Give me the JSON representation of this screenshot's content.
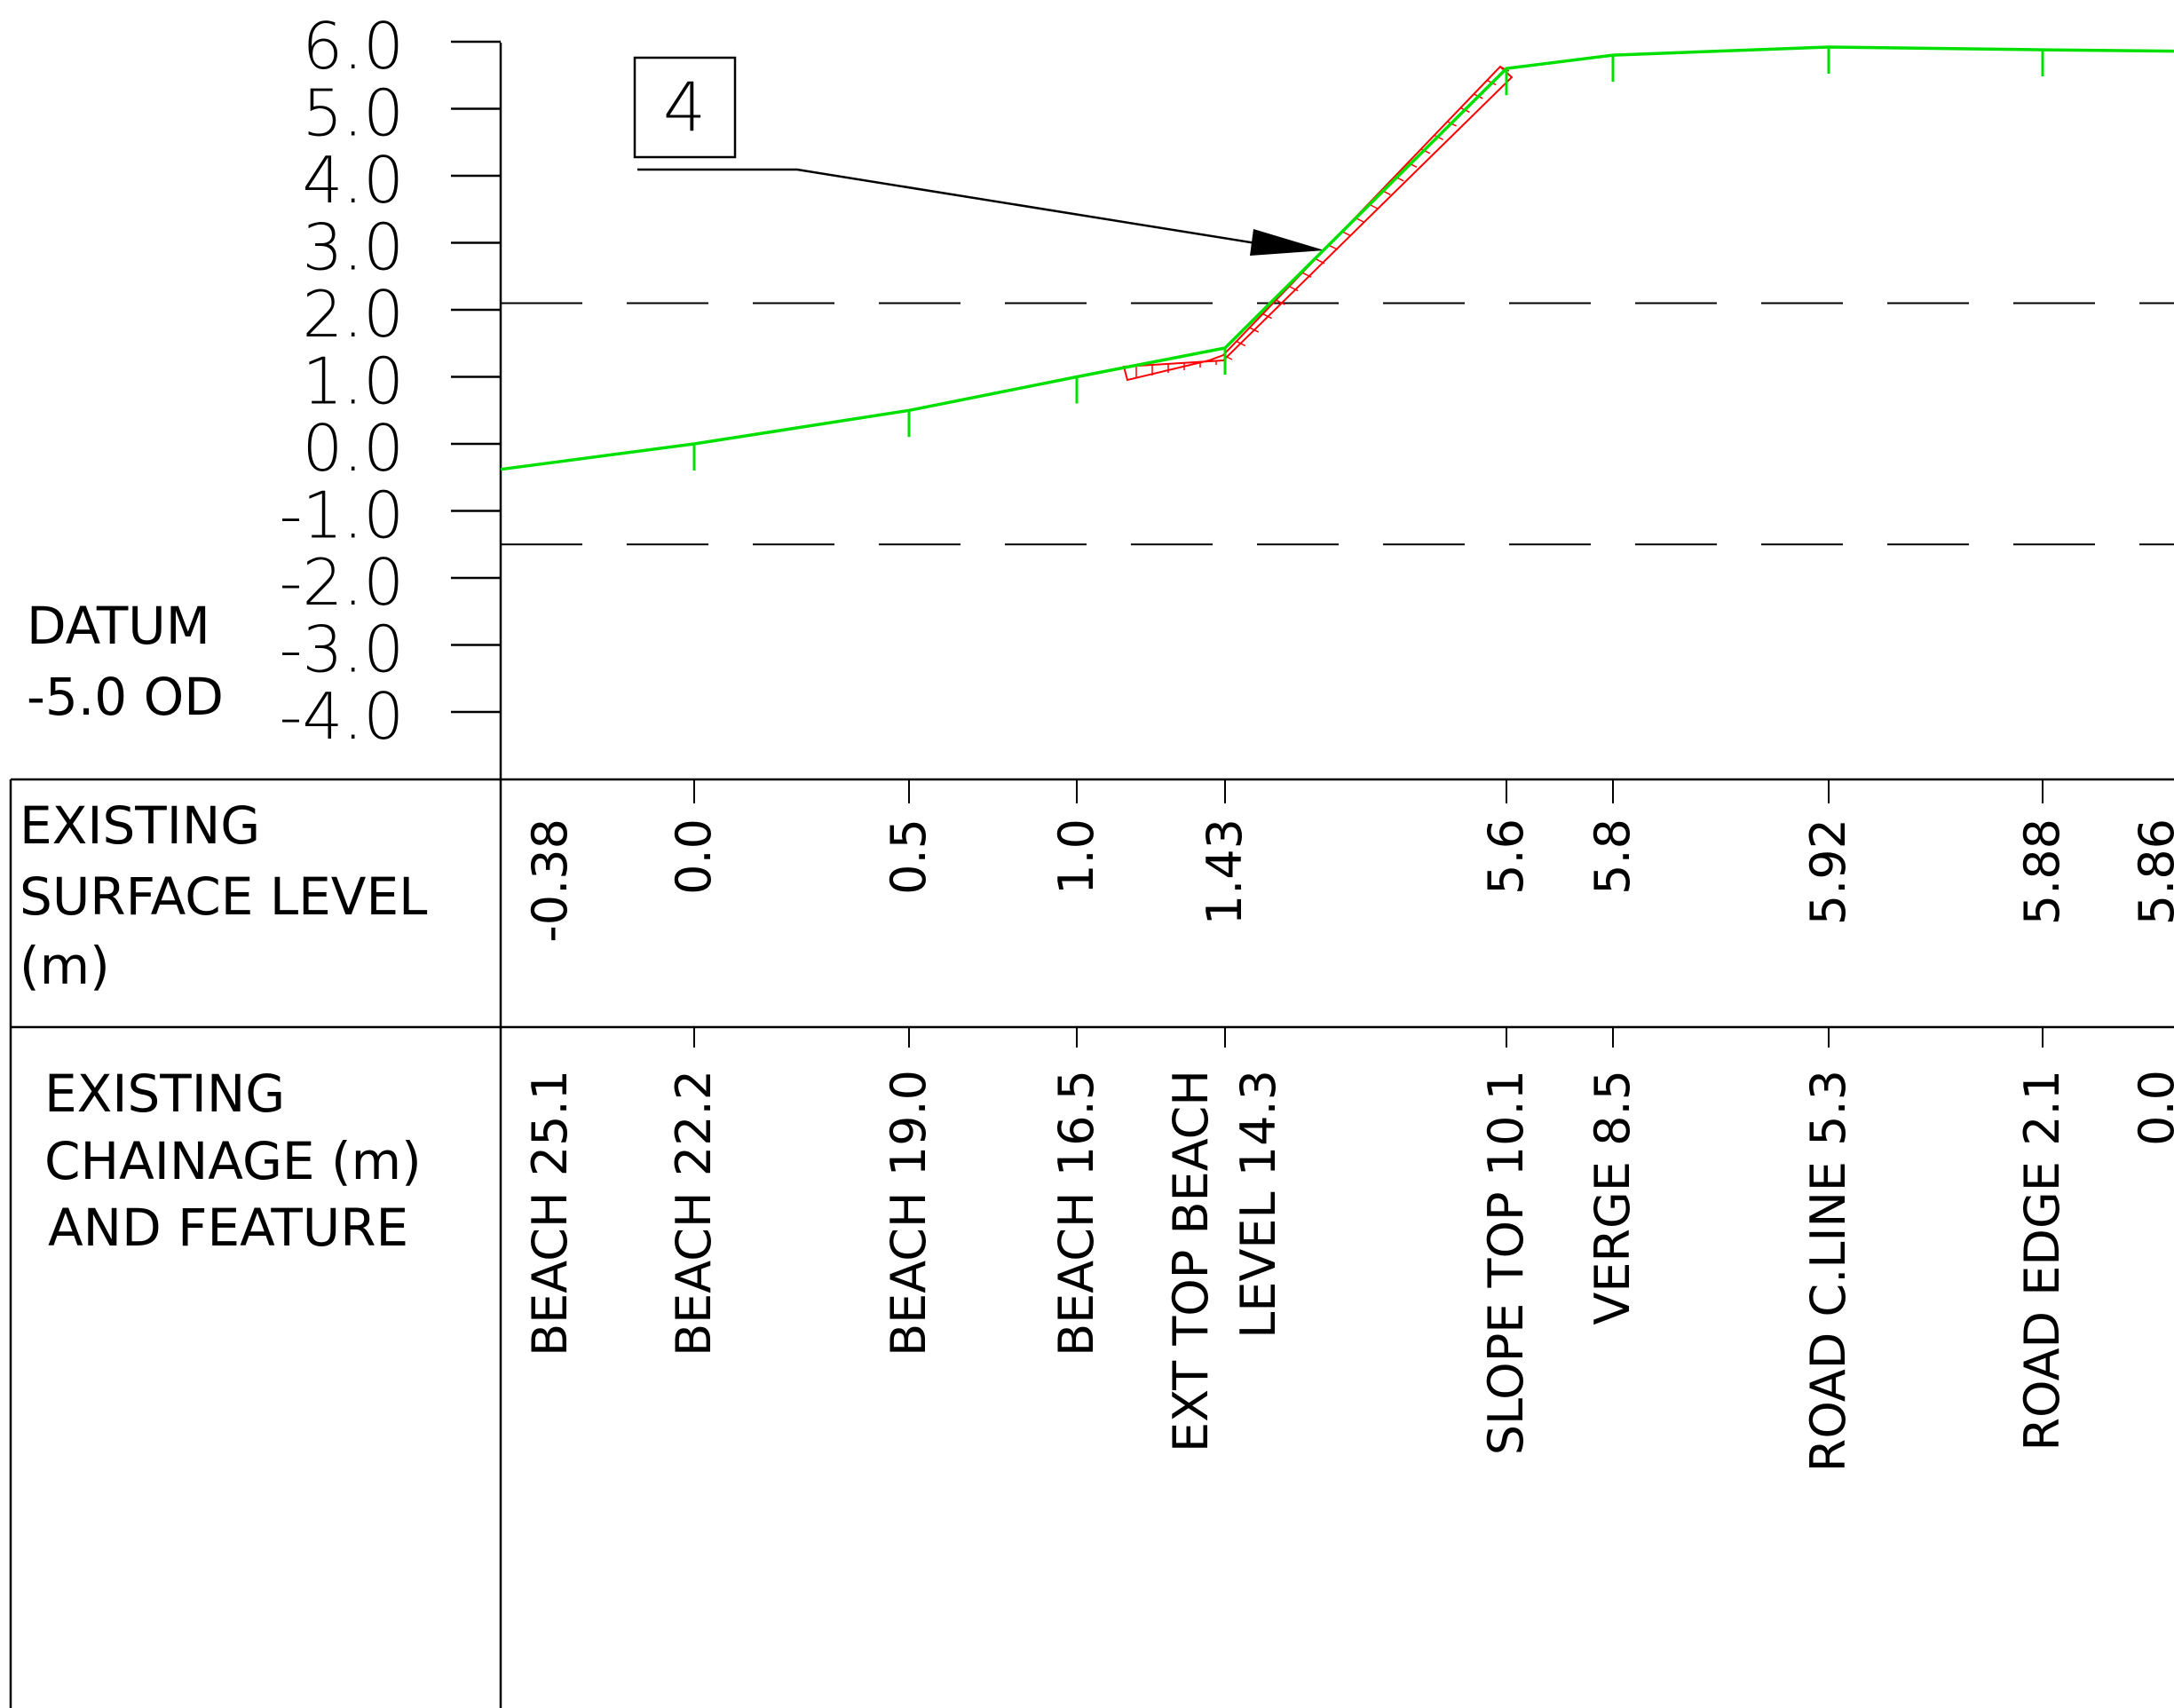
{
  "datum": {
    "line1": "DATUM",
    "line2": "-5.0 OD"
  },
  "callout": {
    "label": "4"
  },
  "y_axis": {
    "ticks": [
      {
        "value": 6.0,
        "label": "6.0"
      },
      {
        "value": 5.0,
        "label": "5.0"
      },
      {
        "value": 4.0,
        "label": "4.0"
      },
      {
        "value": 3.0,
        "label": "3.0"
      },
      {
        "value": 2.0,
        "label": "2.0"
      },
      {
        "value": 1.0,
        "label": "1.0"
      },
      {
        "value": 0.0,
        "label": "0.0"
      },
      {
        "value": -1.0,
        "label": "-1.0"
      },
      {
        "value": -2.0,
        "label": "-2.0"
      },
      {
        "value": -3.0,
        "label": "-3.0"
      },
      {
        "value": -4.0,
        "label": "-4.0"
      }
    ],
    "ylim": [
      -5.0,
      6.0
    ]
  },
  "reference_levels": [
    2.1,
    -1.5
  ],
  "table": {
    "row1_header": [
      "EXISTING",
      "SURFACE LEVEL",
      "(m)"
    ],
    "row2_header": [
      "EXISTING",
      "CHAINAGE (m)",
      "AND FEATURE"
    ]
  },
  "chart_data": {
    "type": "line",
    "series": [
      {
        "points": [
          {
            "chainage": 25.1,
            "level": -0.38,
            "level_label": "-0.38",
            "feature": [
              "BEACH 25.1"
            ]
          },
          {
            "chainage": 22.2,
            "level": 0.0,
            "level_label": "0.0",
            "feature": [
              "BEACH 22.2"
            ]
          },
          {
            "chainage": 19.0,
            "level": 0.5,
            "level_label": "0.5",
            "feature": [
              "BEACH 19.0"
            ]
          },
          {
            "chainage": 16.5,
            "level": 1.0,
            "level_label": "1.0",
            "feature": [
              "BEACH 16.5"
            ]
          },
          {
            "chainage": 14.3,
            "level": 1.43,
            "level_label": "1.43",
            "feature": [
              "EXT TOP BEACH",
              "LEVEL 14.3"
            ]
          },
          {
            "chainage": 10.1,
            "level": 5.6,
            "level_label": "5.6",
            "feature": [
              "SLOPE TOP 10.1"
            ]
          },
          {
            "chainage": 8.5,
            "level": 5.8,
            "level_label": "5.8",
            "feature": [
              "VERGE 8.5"
            ]
          },
          {
            "chainage": 5.3,
            "level": 5.92,
            "level_label": "5.92",
            "feature": [
              "ROAD  C.LINE 5.3"
            ]
          },
          {
            "chainage": 2.1,
            "level": 5.88,
            "level_label": "5.88",
            "feature": [
              "ROAD EDGE 2.1"
            ]
          },
          {
            "chainage": 0.0,
            "level": 5.86,
            "level_label": "5.86",
            "feature": [
              "0.0"
            ]
          }
        ]
      }
    ]
  },
  "colors": {
    "ground": "#00e000",
    "revetment": "#ff0000",
    "lines": "#000000"
  }
}
